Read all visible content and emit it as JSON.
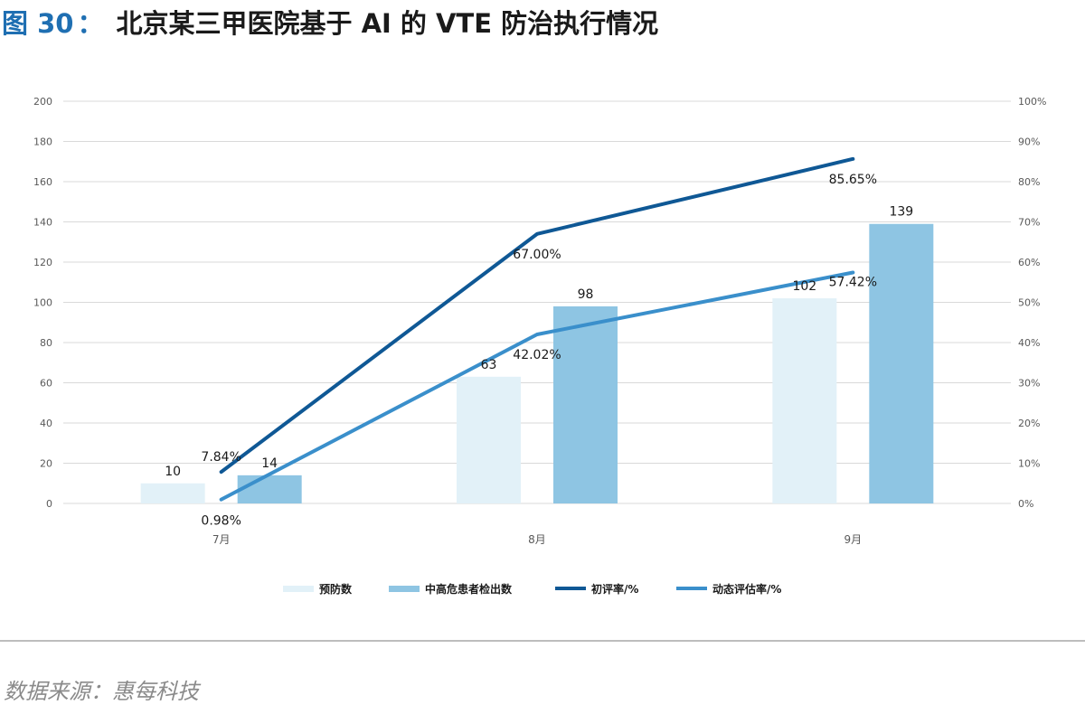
{
  "figure": {
    "number": "图 30",
    "colon": "：",
    "title": "北京某三甲医院基于 AI 的 VTE 防治执行情况"
  },
  "source": "数据来源：惠每科技",
  "chart_data": {
    "type": "bar",
    "title": "北京某三甲医院基于 AI 的 VTE 防治执行情况",
    "categories": [
      "7月",
      "8月",
      "9月"
    ],
    "y_left": {
      "ylim": [
        0,
        200
      ],
      "ticks": [
        "0",
        "20",
        "40",
        "60",
        "80",
        "100",
        "120",
        "140",
        "160",
        "180",
        "200"
      ]
    },
    "y_right": {
      "ylim": [
        0,
        100
      ],
      "ticks": [
        "0%",
        "10%",
        "20%",
        "30%",
        "40%",
        "50%",
        "60%",
        "70%",
        "80%",
        "90%",
        "100%"
      ]
    },
    "grid": true,
    "legend_position": "bottom",
    "series": [
      {
        "name": "预防数",
        "type": "bar",
        "axis": "left",
        "color": "#e2f1f8",
        "values": [
          10,
          63,
          102
        ],
        "labels": [
          "10",
          "63",
          "102"
        ]
      },
      {
        "name": "中高危患者检出数",
        "type": "bar",
        "axis": "left",
        "color": "#8ec5e3",
        "values": [
          14,
          98,
          139
        ],
        "labels": [
          "14",
          "98",
          "139"
        ]
      },
      {
        "name": "初评率/%",
        "type": "line",
        "axis": "right",
        "color": "#0f5895",
        "values": [
          7.84,
          67.0,
          85.65
        ],
        "labels": [
          "7.84%",
          "67.00%",
          "85.65%"
        ]
      },
      {
        "name": "动态评估率/%",
        "type": "line",
        "axis": "right",
        "color": "#3a8fcb",
        "values": [
          0.98,
          42.02,
          57.42
        ],
        "labels": [
          "0.98%",
          "42.02%",
          "57.42%"
        ]
      }
    ]
  }
}
